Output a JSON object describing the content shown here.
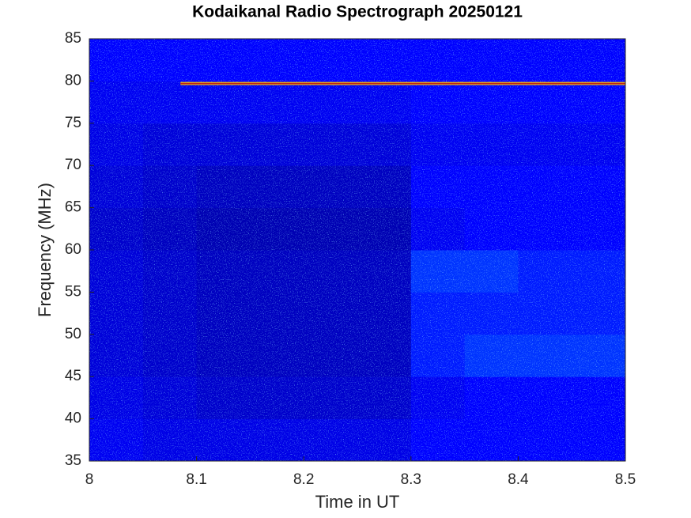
{
  "chart_data": {
    "type": "heatmap",
    "title": "Kodaikanal Radio Spectrograph  20250121",
    "xlabel": "Time in UT",
    "ylabel": "Frequency (MHz)",
    "xlim": [
      8,
      8.5
    ],
    "ylim": [
      35,
      85
    ],
    "xticks": [
      8,
      8.1,
      8.2,
      8.3,
      8.4,
      8.5
    ],
    "yticks": [
      35,
      40,
      45,
      50,
      55,
      60,
      65,
      70,
      75,
      80,
      85
    ],
    "colormap": [
      "#000080",
      "#0000ff",
      "#00ffff"
    ],
    "z": [
      [
        0.45,
        0.4,
        0.4,
        0.4,
        0.4,
        0.4,
        0.5,
        0.5,
        0.5,
        0.5
      ],
      [
        0.4,
        0.35,
        0.3,
        0.3,
        0.3,
        0.3,
        0.45,
        0.5,
        0.5,
        0.5
      ],
      [
        0.35,
        0.3,
        0.25,
        0.25,
        0.25,
        0.25,
        0.55,
        0.6,
        0.6,
        0.6
      ],
      [
        0.35,
        0.3,
        0.25,
        0.25,
        0.25,
        0.25,
        0.55,
        0.55,
        0.55,
        0.55
      ],
      [
        0.35,
        0.3,
        0.25,
        0.25,
        0.25,
        0.25,
        0.6,
        0.6,
        0.55,
        0.55
      ],
      [
        0.3,
        0.25,
        0.2,
        0.2,
        0.2,
        0.2,
        0.45,
        0.5,
        0.5,
        0.5
      ],
      [
        0.35,
        0.3,
        0.25,
        0.25,
        0.25,
        0.25,
        0.5,
        0.5,
        0.5,
        0.5
      ],
      [
        0.4,
        0.35,
        0.35,
        0.35,
        0.35,
        0.35,
        0.45,
        0.45,
        0.45,
        0.45
      ],
      [
        0.45,
        0.45,
        0.45,
        0.45,
        0.45,
        0.45,
        0.5,
        0.5,
        0.5,
        0.5
      ],
      [
        0.5,
        0.5,
        0.5,
        0.5,
        0.5,
        0.5,
        0.5,
        0.5,
        0.5,
        0.5
      ]
    ],
    "lines": [
      {
        "y": 79.7,
        "x": [
          8.085,
          8.5
        ],
        "color": "#e0a020"
      }
    ]
  }
}
